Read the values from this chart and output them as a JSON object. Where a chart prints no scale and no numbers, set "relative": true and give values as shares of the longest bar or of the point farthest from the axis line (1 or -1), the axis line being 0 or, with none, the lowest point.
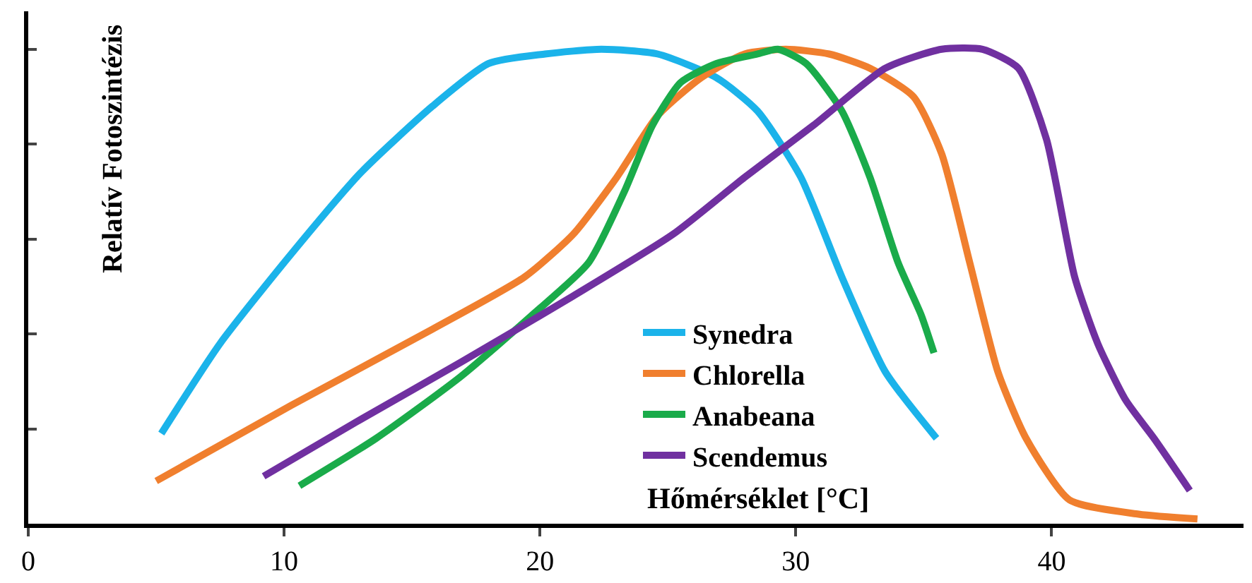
{
  "chart_data": {
    "type": "line",
    "relative": true,
    "xlabel": "Hőmérséklet [°C]",
    "ylabel": "Relatív Fotoszintézis",
    "xlim": [
      0,
      47.5
    ],
    "xticks": [
      0,
      10,
      20,
      30,
      40
    ],
    "legend": "bottom",
    "grid": false,
    "marker": "none",
    "line_style": "solid",
    "series": [
      {
        "name": "Synedra",
        "color": "#1bb3ea",
        "x": [
          5.2,
          7.5,
          10.3,
          13.0,
          15.8,
          18.0,
          20.2,
          22.4,
          24.6,
          26.9,
          28.5,
          30.2,
          31.8,
          33.5,
          35.5
        ],
        "values": [
          0.19,
          0.38,
          0.57,
          0.74,
          0.88,
          0.97,
          0.99,
          1.0,
          0.99,
          0.94,
          0.87,
          0.73,
          0.52,
          0.32,
          0.18
        ]
      },
      {
        "name": "Chlorella",
        "color": "#f07f2e",
        "x": [
          5.0,
          10.3,
          15.8,
          19.4,
          21.3,
          23.0,
          24.6,
          26.3,
          28.0,
          29.6,
          31.3,
          32.9,
          34.6,
          35.7,
          36.8,
          37.9,
          39.0,
          40.7,
          43.4,
          45.7
        ],
        "values": [
          0.09,
          0.25,
          0.41,
          0.52,
          0.61,
          0.73,
          0.86,
          0.94,
          0.99,
          1.0,
          0.99,
          0.96,
          0.9,
          0.78,
          0.55,
          0.32,
          0.18,
          0.05,
          0.02,
          0.01
        ]
      },
      {
        "name": "Anabeana",
        "color": "#1aab4a",
        "x": [
          10.6,
          13.6,
          16.9,
          19.7,
          21.9,
          23.3,
          24.4,
          25.5,
          26.9,
          28.5,
          29.3,
          30.4,
          31.8,
          32.9,
          34.0,
          34.9,
          35.4
        ],
        "values": [
          0.08,
          0.18,
          0.31,
          0.44,
          0.55,
          0.7,
          0.84,
          0.93,
          0.97,
          0.99,
          1.0,
          0.97,
          0.87,
          0.73,
          0.55,
          0.44,
          0.36
        ]
      },
      {
        "name": "Scendemus",
        "color": "#7030a0",
        "x": [
          9.2,
          13.0,
          16.9,
          21.3,
          25.2,
          28.0,
          30.7,
          33.5,
          35.7,
          37.3,
          38.7,
          39.8,
          40.9,
          41.8,
          42.9,
          44.0,
          45.4
        ],
        "values": [
          0.1,
          0.22,
          0.34,
          0.48,
          0.61,
          0.73,
          0.84,
          0.96,
          1.0,
          1.0,
          0.96,
          0.81,
          0.52,
          0.38,
          0.26,
          0.18,
          0.07
        ]
      }
    ]
  }
}
